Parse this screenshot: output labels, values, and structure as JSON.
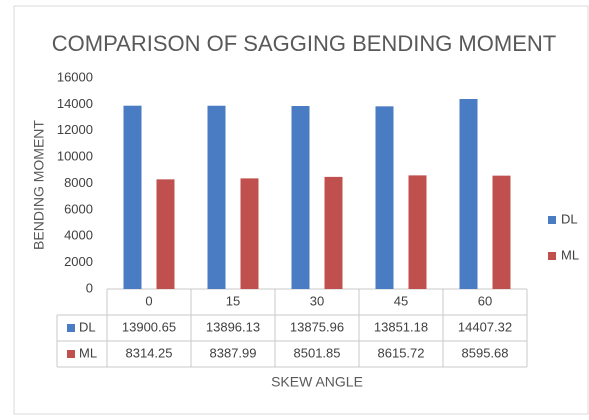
{
  "chart_data": {
    "type": "bar",
    "title": "COMPARISON OF SAGGING BENDING MOMENT",
    "x_label": "SKEW ANGLE",
    "y_label": "BENDING MOMENT",
    "categories": [
      "0",
      "15",
      "30",
      "45",
      "60"
    ],
    "series": [
      {
        "name": "DL",
        "color": "#4a7cc4",
        "values": [
          13900.65,
          13896.13,
          13875.96,
          13851.18,
          14407.32
        ]
      },
      {
        "name": "ML",
        "color": "#c0504d",
        "values": [
          8314.25,
          8387.99,
          8501.85,
          8615.72,
          8595.68
        ]
      }
    ],
    "ylim": [
      0,
      16000
    ],
    "yticks": [
      0,
      2000,
      4000,
      6000,
      8000,
      10000,
      12000,
      14000,
      16000
    ],
    "grid": false,
    "legend": "right"
  }
}
